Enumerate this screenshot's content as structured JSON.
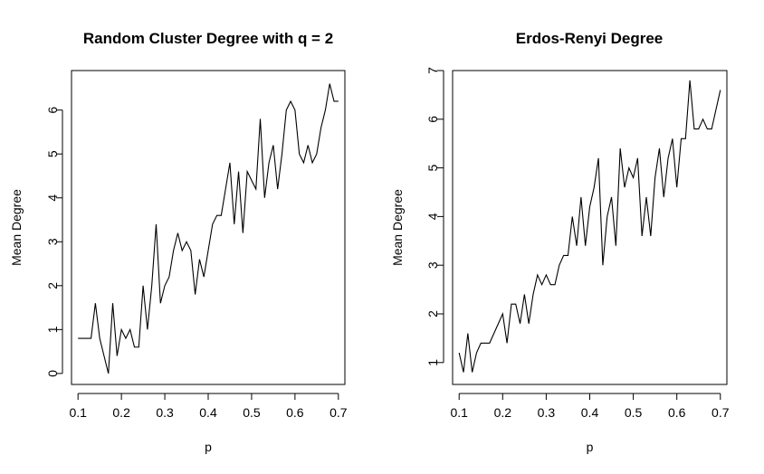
{
  "chart_data": [
    {
      "type": "line",
      "title": "Random Cluster Degree with q = 2",
      "xlabel": "p",
      "ylabel": "Mean Degree",
      "xlim": [
        0.085,
        0.715
      ],
      "ylim": [
        -0.25,
        6.9
      ],
      "xticks": [
        0.1,
        0.2,
        0.3,
        0.4,
        0.5,
        0.6,
        0.7
      ],
      "xtick_labels": [
        "0.1",
        "0.2",
        "0.3",
        "0.4",
        "0.5",
        "0.6",
        "0.7"
      ],
      "yticks": [
        0,
        1,
        2,
        3,
        4,
        5,
        6
      ],
      "ytick_labels": [
        "0",
        "1",
        "2",
        "3",
        "4",
        "5",
        "6"
      ],
      "grid": false,
      "series": [
        {
          "x": [
            0.1,
            0.11,
            0.12,
            0.13,
            0.14,
            0.15,
            0.16,
            0.17,
            0.18,
            0.19,
            0.2,
            0.21,
            0.22,
            0.23,
            0.24,
            0.25,
            0.26,
            0.27,
            0.28,
            0.29,
            0.3,
            0.31,
            0.32,
            0.33,
            0.34,
            0.35,
            0.36,
            0.37,
            0.38,
            0.39,
            0.4,
            0.41,
            0.42,
            0.43,
            0.44,
            0.45,
            0.46,
            0.47,
            0.48,
            0.49,
            0.5,
            0.51,
            0.52,
            0.53,
            0.54,
            0.55,
            0.56,
            0.57,
            0.58,
            0.59,
            0.6,
            0.61,
            0.62,
            0.63,
            0.64,
            0.65,
            0.66,
            0.67,
            0.68,
            0.69,
            0.7
          ],
          "y": [
            0.8,
            0.8,
            0.8,
            0.8,
            1.6,
            0.8,
            0.4,
            0.0,
            1.6,
            0.4,
            1.0,
            0.8,
            1.0,
            0.6,
            0.6,
            2.0,
            1.0,
            2.0,
            3.4,
            1.6,
            2.0,
            2.2,
            2.8,
            3.2,
            2.8,
            3.0,
            2.8,
            1.8,
            2.6,
            2.2,
            2.8,
            3.4,
            3.6,
            3.6,
            4.2,
            4.8,
            3.4,
            4.6,
            3.2,
            4.6,
            4.4,
            4.2,
            5.8,
            4.0,
            4.8,
            5.2,
            4.2,
            5.0,
            6.0,
            6.2,
            6.0,
            5.0,
            4.8,
            5.2,
            4.8,
            5.0,
            5.6,
            6.0,
            6.6,
            6.2,
            6.2
          ]
        }
      ]
    },
    {
      "type": "line",
      "title": "Erdos-Renyi Degree",
      "xlabel": "p",
      "ylabel": "Mean Degree",
      "xlim": [
        0.085,
        0.715
      ],
      "ylim": [
        0.55,
        7.0
      ],
      "xticks": [
        0.1,
        0.2,
        0.3,
        0.4,
        0.5,
        0.6,
        0.7
      ],
      "xtick_labels": [
        "0.1",
        "0.2",
        "0.3",
        "0.4",
        "0.5",
        "0.6",
        "0.7"
      ],
      "yticks": [
        1,
        2,
        3,
        4,
        5,
        6,
        7
      ],
      "ytick_labels": [
        "1",
        "2",
        "3",
        "4",
        "5",
        "6",
        "7"
      ],
      "grid": false,
      "series": [
        {
          "x": [
            0.1,
            0.11,
            0.12,
            0.13,
            0.14,
            0.15,
            0.16,
            0.17,
            0.18,
            0.19,
            0.2,
            0.21,
            0.22,
            0.23,
            0.24,
            0.25,
            0.26,
            0.27,
            0.28,
            0.29,
            0.3,
            0.31,
            0.32,
            0.33,
            0.34,
            0.35,
            0.36,
            0.37,
            0.38,
            0.39,
            0.4,
            0.41,
            0.42,
            0.43,
            0.44,
            0.45,
            0.46,
            0.47,
            0.48,
            0.49,
            0.5,
            0.51,
            0.52,
            0.53,
            0.54,
            0.55,
            0.56,
            0.57,
            0.58,
            0.59,
            0.6,
            0.61,
            0.62,
            0.63,
            0.64,
            0.65,
            0.66,
            0.67,
            0.68,
            0.69,
            0.7
          ],
          "y": [
            1.2,
            0.8,
            1.6,
            0.8,
            1.2,
            1.4,
            1.4,
            1.4,
            1.6,
            1.8,
            2.0,
            1.4,
            2.2,
            2.2,
            1.8,
            2.4,
            1.8,
            2.4,
            2.8,
            2.6,
            2.8,
            2.6,
            2.6,
            3.0,
            3.2,
            3.2,
            4.0,
            3.4,
            4.4,
            3.4,
            4.2,
            4.6,
            5.2,
            3.0,
            4.0,
            4.4,
            3.4,
            5.4,
            4.6,
            5.0,
            4.8,
            5.2,
            3.6,
            4.4,
            3.6,
            4.8,
            5.4,
            4.4,
            5.2,
            5.6,
            4.6,
            5.6,
            5.6,
            6.8,
            5.8,
            5.8,
            6.0,
            5.8,
            5.8,
            6.2,
            6.6
          ]
        }
      ]
    }
  ]
}
